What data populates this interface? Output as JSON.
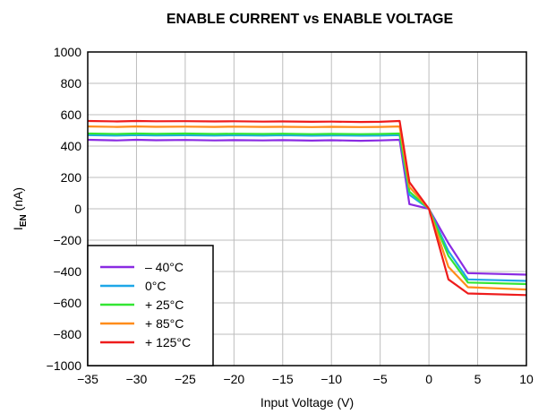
{
  "chart_data": {
    "type": "line",
    "title": "ENABLE CURRENT vs ENABLE VOLTAGE",
    "xlabel": "Input Voltage (V)",
    "ylabel": {
      "main": "I",
      "sub": "EN",
      "rest": " (nA)"
    },
    "xlim": [
      -35,
      10
    ],
    "ylim": [
      -1000,
      1000
    ],
    "xticks": [
      -35,
      -30,
      -25,
      -20,
      -15,
      -10,
      -5,
      0,
      5,
      10
    ],
    "yticks": [
      -1000,
      -800,
      -600,
      -400,
      -200,
      0,
      200,
      400,
      600,
      800,
      1000
    ],
    "xtick_labels": [
      "−35",
      "−30",
      "−25",
      "−20",
      "−15",
      "−10",
      "−5",
      "0",
      "5",
      "10"
    ],
    "ytick_labels": [
      "−1000",
      "−800",
      "−600",
      "−400",
      "−200",
      "0",
      "200",
      "400",
      "600",
      "800",
      "1000"
    ],
    "grid": true,
    "legend_position": "bottom-left",
    "series": [
      {
        "name": "– 40°C",
        "color": "#8a2be2",
        "x": [
          -35,
          -32,
          -30,
          -28,
          -25,
          -22,
          -20,
          -17,
          -15,
          -12,
          -10,
          -7,
          -5,
          -3,
          -2,
          0,
          2,
          4,
          10
        ],
        "y": [
          440,
          436,
          440,
          437,
          439,
          436,
          438,
          436,
          438,
          435,
          437,
          434,
          436,
          440,
          30,
          0,
          -220,
          -410,
          -420
        ]
      },
      {
        "name": "0°C",
        "color": "#1ea7e8",
        "x": [
          -35,
          -32,
          -30,
          -28,
          -25,
          -22,
          -20,
          -17,
          -15,
          -12,
          -10,
          -7,
          -5,
          -3,
          -2,
          0,
          2,
          4,
          10
        ],
        "y": [
          470,
          467,
          470,
          468,
          469,
          467,
          469,
          467,
          469,
          466,
          468,
          466,
          467,
          470,
          90,
          0,
          -270,
          -450,
          -460
        ]
      },
      {
        "name": "+ 25°C",
        "color": "#33e633",
        "x": [
          -35,
          -32,
          -30,
          -28,
          -25,
          -22,
          -20,
          -17,
          -15,
          -12,
          -10,
          -7,
          -5,
          -3,
          -2,
          0,
          2,
          4,
          10
        ],
        "y": [
          480,
          477,
          480,
          478,
          480,
          477,
          479,
          477,
          479,
          476,
          478,
          476,
          477,
          480,
          110,
          0,
          -300,
          -470,
          -480
        ]
      },
      {
        "name": "+ 85°C",
        "color": "#ff8c1a",
        "x": [
          -35,
          -32,
          -30,
          -28,
          -25,
          -22,
          -20,
          -17,
          -15,
          -12,
          -10,
          -7,
          -5,
          -3,
          -2,
          0,
          2,
          4,
          10
        ],
        "y": [
          525,
          522,
          525,
          523,
          524,
          522,
          524,
          522,
          523,
          521,
          523,
          521,
          522,
          525,
          140,
          0,
          -370,
          -500,
          -515
        ]
      },
      {
        "name": "+ 125°C",
        "color": "#ee1c1c",
        "x": [
          -35,
          -32,
          -30,
          -28,
          -25,
          -22,
          -20,
          -17,
          -15,
          -12,
          -10,
          -7,
          -5,
          -3,
          -2,
          0,
          2,
          4,
          10
        ],
        "y": [
          560,
          557,
          560,
          558,
          559,
          557,
          558,
          556,
          557,
          555,
          556,
          554,
          555,
          560,
          170,
          0,
          -450,
          -540,
          -550
        ]
      }
    ]
  }
}
